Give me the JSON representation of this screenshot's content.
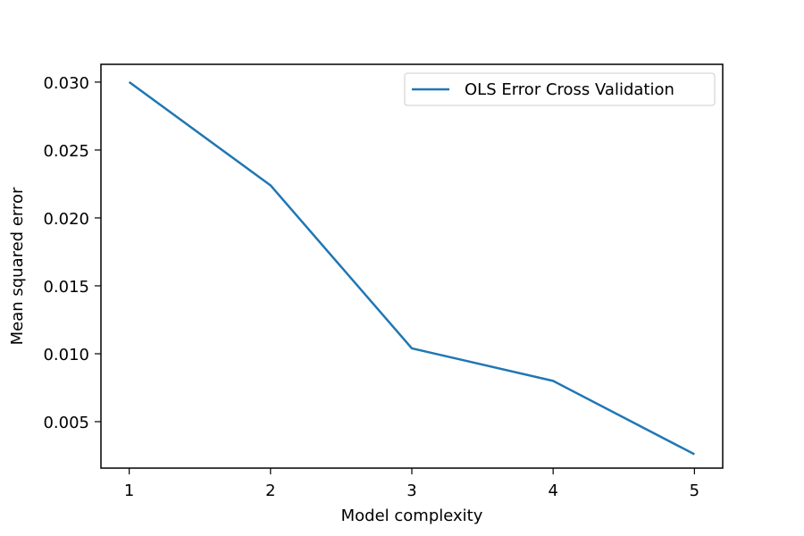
{
  "chart_data": {
    "type": "line",
    "title": "",
    "xlabel": "Model complexity",
    "ylabel": "Mean squared error",
    "x": [
      1,
      2,
      3,
      4,
      5
    ],
    "series": [
      {
        "name": "OLS Error Cross Validation",
        "color": "#1f77b4",
        "values": [
          0.03,
          0.0224,
          0.0104,
          0.008,
          0.0026
        ]
      }
    ],
    "xlim": [
      0.8,
      5.2
    ],
    "ylim": [
      0.00158,
      0.03131
    ],
    "xticks": [
      1,
      2,
      3,
      4,
      5
    ],
    "xtick_labels": [
      "1",
      "2",
      "3",
      "4",
      "5"
    ],
    "yticks": [
      0.005,
      0.01,
      0.015,
      0.02,
      0.025,
      0.03
    ],
    "ytick_labels": [
      "0.005",
      "0.010",
      "0.015",
      "0.020",
      "0.025",
      "0.030"
    ],
    "grid": false,
    "legend_position": "top-right"
  }
}
